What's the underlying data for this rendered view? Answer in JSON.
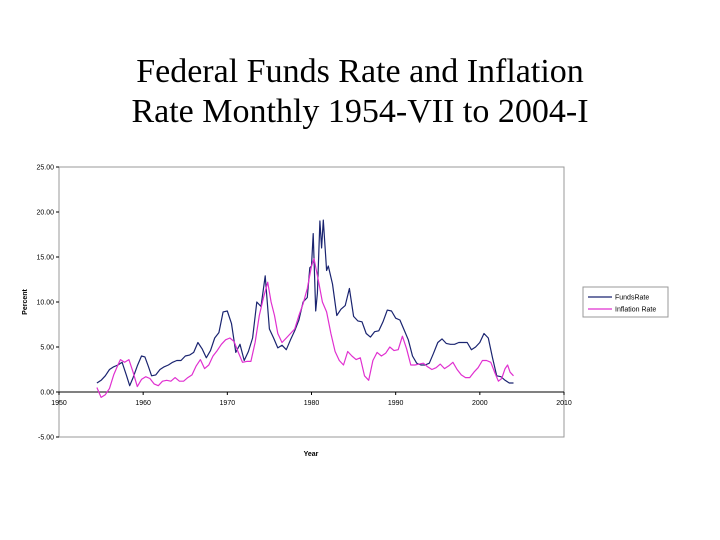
{
  "slide": {
    "title_line1": "Federal Funds Rate and Inflation",
    "title_line2": "Rate Monthly 1954-VII to 2004-I"
  },
  "chart_data": {
    "type": "line",
    "xlabel": "Year",
    "ylabel": "Percent",
    "xlim": [
      1950,
      2010
    ],
    "ylim": [
      -5,
      25
    ],
    "x_ticks": [
      1950,
      1960,
      1970,
      1980,
      1990,
      2000,
      2010
    ],
    "y_ticks": [
      -5,
      0,
      5,
      10,
      15,
      20,
      25
    ],
    "x_tick_labels": [
      "1950",
      "1960",
      "1970",
      "1980",
      "1990",
      "2000",
      "2010"
    ],
    "y_tick_labels": [
      "-5.00",
      "0.00",
      "5.00",
      "10.00",
      "15.00",
      "20.00",
      "25.00"
    ],
    "grid": false,
    "legend_position": "right",
    "series": [
      {
        "name": "FundsRate",
        "color": "#1a2470",
        "points": [
          [
            1954.5,
            1.0
          ],
          [
            1955.0,
            1.3
          ],
          [
            1955.5,
            1.8
          ],
          [
            1956.0,
            2.5
          ],
          [
            1956.5,
            2.8
          ],
          [
            1957.0,
            3.0
          ],
          [
            1957.5,
            3.3
          ],
          [
            1958.0,
            1.9
          ],
          [
            1958.4,
            0.7
          ],
          [
            1958.8,
            1.6
          ],
          [
            1959.3,
            2.9
          ],
          [
            1959.8,
            4.0
          ],
          [
            1960.2,
            3.9
          ],
          [
            1960.6,
            2.9
          ],
          [
            1961.0,
            1.8
          ],
          [
            1961.5,
            1.9
          ],
          [
            1962.0,
            2.5
          ],
          [
            1962.5,
            2.8
          ],
          [
            1963.0,
            3.0
          ],
          [
            1963.5,
            3.3
          ],
          [
            1964.0,
            3.5
          ],
          [
            1964.5,
            3.5
          ],
          [
            1965.0,
            4.0
          ],
          [
            1965.5,
            4.1
          ],
          [
            1966.0,
            4.4
          ],
          [
            1966.5,
            5.5
          ],
          [
            1967.0,
            4.8
          ],
          [
            1967.5,
            3.8
          ],
          [
            1968.0,
            4.6
          ],
          [
            1968.5,
            6.0
          ],
          [
            1969.0,
            6.6
          ],
          [
            1969.5,
            8.9
          ],
          [
            1970.0,
            9.0
          ],
          [
            1970.5,
            7.6
          ],
          [
            1971.0,
            4.4
          ],
          [
            1971.5,
            5.3
          ],
          [
            1972.0,
            3.5
          ],
          [
            1972.5,
            4.5
          ],
          [
            1973.0,
            6.0
          ],
          [
            1973.5,
            10.0
          ],
          [
            1974.0,
            9.5
          ],
          [
            1974.5,
            12.9
          ],
          [
            1975.0,
            7.0
          ],
          [
            1975.5,
            6.0
          ],
          [
            1976.0,
            4.9
          ],
          [
            1976.5,
            5.2
          ],
          [
            1977.0,
            4.7
          ],
          [
            1977.5,
            5.8
          ],
          [
            1978.0,
            6.8
          ],
          [
            1978.5,
            8.0
          ],
          [
            1979.0,
            10.0
          ],
          [
            1979.5,
            10.5
          ],
          [
            1979.8,
            13.8
          ],
          [
            1980.0,
            14.0
          ],
          [
            1980.2,
            17.6
          ],
          [
            1980.5,
            9.0
          ],
          [
            1980.7,
            11.0
          ],
          [
            1981.0,
            19.0
          ],
          [
            1981.2,
            16.0
          ],
          [
            1981.4,
            19.1
          ],
          [
            1981.8,
            13.5
          ],
          [
            1982.0,
            14.0
          ],
          [
            1982.5,
            12.0
          ],
          [
            1983.0,
            8.5
          ],
          [
            1983.5,
            9.2
          ],
          [
            1984.0,
            9.6
          ],
          [
            1984.5,
            11.5
          ],
          [
            1985.0,
            8.4
          ],
          [
            1985.5,
            7.9
          ],
          [
            1986.0,
            7.8
          ],
          [
            1986.5,
            6.5
          ],
          [
            1987.0,
            6.1
          ],
          [
            1987.5,
            6.7
          ],
          [
            1988.0,
            6.8
          ],
          [
            1988.5,
            7.8
          ],
          [
            1989.0,
            9.1
          ],
          [
            1989.5,
            9.0
          ],
          [
            1990.0,
            8.2
          ],
          [
            1990.5,
            8.0
          ],
          [
            1991.0,
            6.9
          ],
          [
            1991.5,
            5.8
          ],
          [
            1992.0,
            4.0
          ],
          [
            1992.5,
            3.2
          ],
          [
            1993.0,
            3.0
          ],
          [
            1993.5,
            3.0
          ],
          [
            1994.0,
            3.2
          ],
          [
            1994.5,
            4.3
          ],
          [
            1995.0,
            5.5
          ],
          [
            1995.5,
            5.9
          ],
          [
            1996.0,
            5.4
          ],
          [
            1996.5,
            5.3
          ],
          [
            1997.0,
            5.3
          ],
          [
            1997.5,
            5.5
          ],
          [
            1998.0,
            5.5
          ],
          [
            1998.5,
            5.5
          ],
          [
            1999.0,
            4.7
          ],
          [
            1999.5,
            5.0
          ],
          [
            2000.0,
            5.5
          ],
          [
            2000.5,
            6.5
          ],
          [
            2001.0,
            6.0
          ],
          [
            2001.5,
            3.8
          ],
          [
            2002.0,
            1.8
          ],
          [
            2002.5,
            1.7
          ],
          [
            2003.0,
            1.3
          ],
          [
            2003.5,
            1.0
          ],
          [
            2004.0,
            1.0
          ]
        ]
      },
      {
        "name": "Inflation Rate",
        "color": "#e030d0",
        "points": [
          [
            1954.5,
            0.5
          ],
          [
            1955.0,
            -0.6
          ],
          [
            1955.5,
            -0.3
          ],
          [
            1956.0,
            0.4
          ],
          [
            1956.5,
            1.9
          ],
          [
            1957.0,
            3.0
          ],
          [
            1957.3,
            3.6
          ],
          [
            1957.8,
            3.3
          ],
          [
            1958.3,
            3.6
          ],
          [
            1958.8,
            2.2
          ],
          [
            1959.3,
            0.6
          ],
          [
            1959.8,
            1.4
          ],
          [
            1960.3,
            1.7
          ],
          [
            1960.8,
            1.5
          ],
          [
            1961.3,
            0.9
          ],
          [
            1961.8,
            0.7
          ],
          [
            1962.3,
            1.2
          ],
          [
            1962.8,
            1.3
          ],
          [
            1963.3,
            1.2
          ],
          [
            1963.8,
            1.6
          ],
          [
            1964.3,
            1.2
          ],
          [
            1964.8,
            1.2
          ],
          [
            1965.3,
            1.6
          ],
          [
            1965.8,
            1.9
          ],
          [
            1966.3,
            2.9
          ],
          [
            1966.8,
            3.6
          ],
          [
            1967.3,
            2.6
          ],
          [
            1967.8,
            3.0
          ],
          [
            1968.3,
            4.0
          ],
          [
            1968.8,
            4.6
          ],
          [
            1969.3,
            5.3
          ],
          [
            1969.8,
            5.8
          ],
          [
            1970.3,
            6.0
          ],
          [
            1970.8,
            5.6
          ],
          [
            1971.3,
            4.4
          ],
          [
            1971.8,
            3.3
          ],
          [
            1972.3,
            3.4
          ],
          [
            1972.8,
            3.4
          ],
          [
            1973.3,
            5.5
          ],
          [
            1973.8,
            8.5
          ],
          [
            1974.3,
            10.5
          ],
          [
            1974.8,
            12.2
          ],
          [
            1975.2,
            10.0
          ],
          [
            1975.6,
            8.5
          ],
          [
            1976.0,
            6.5
          ],
          [
            1976.5,
            5.5
          ],
          [
            1977.0,
            6.0
          ],
          [
            1977.5,
            6.5
          ],
          [
            1978.0,
            7.0
          ],
          [
            1978.5,
            8.5
          ],
          [
            1979.0,
            9.8
          ],
          [
            1979.5,
            11.5
          ],
          [
            1980.0,
            14.0
          ],
          [
            1980.3,
            14.8
          ],
          [
            1980.8,
            12.5
          ],
          [
            1981.3,
            10.0
          ],
          [
            1981.8,
            8.9
          ],
          [
            1982.3,
            6.5
          ],
          [
            1982.8,
            4.5
          ],
          [
            1983.3,
            3.5
          ],
          [
            1983.8,
            3.0
          ],
          [
            1984.3,
            4.5
          ],
          [
            1984.8,
            4.0
          ],
          [
            1985.3,
            3.6
          ],
          [
            1985.8,
            3.8
          ],
          [
            1986.3,
            1.8
          ],
          [
            1986.8,
            1.3
          ],
          [
            1987.3,
            3.5
          ],
          [
            1987.8,
            4.4
          ],
          [
            1988.3,
            4.0
          ],
          [
            1988.8,
            4.3
          ],
          [
            1989.3,
            5.0
          ],
          [
            1989.8,
            4.6
          ],
          [
            1990.3,
            4.7
          ],
          [
            1990.8,
            6.2
          ],
          [
            1991.3,
            4.8
          ],
          [
            1991.8,
            3.0
          ],
          [
            1992.3,
            3.0
          ],
          [
            1992.8,
            3.1
          ],
          [
            1993.3,
            3.2
          ],
          [
            1993.8,
            2.8
          ],
          [
            1994.3,
            2.5
          ],
          [
            1994.8,
            2.7
          ],
          [
            1995.3,
            3.1
          ],
          [
            1995.8,
            2.6
          ],
          [
            1996.3,
            2.9
          ],
          [
            1996.8,
            3.3
          ],
          [
            1997.3,
            2.5
          ],
          [
            1997.8,
            1.9
          ],
          [
            1998.3,
            1.6
          ],
          [
            1998.8,
            1.6
          ],
          [
            1999.3,
            2.2
          ],
          [
            1999.8,
            2.7
          ],
          [
            2000.3,
            3.5
          ],
          [
            2000.8,
            3.5
          ],
          [
            2001.3,
            3.3
          ],
          [
            2001.8,
            2.1
          ],
          [
            2002.2,
            1.2
          ],
          [
            2002.6,
            1.5
          ],
          [
            2003.0,
            2.6
          ],
          [
            2003.3,
            3.0
          ],
          [
            2003.6,
            2.2
          ],
          [
            2004.0,
            1.8
          ]
        ]
      }
    ]
  }
}
